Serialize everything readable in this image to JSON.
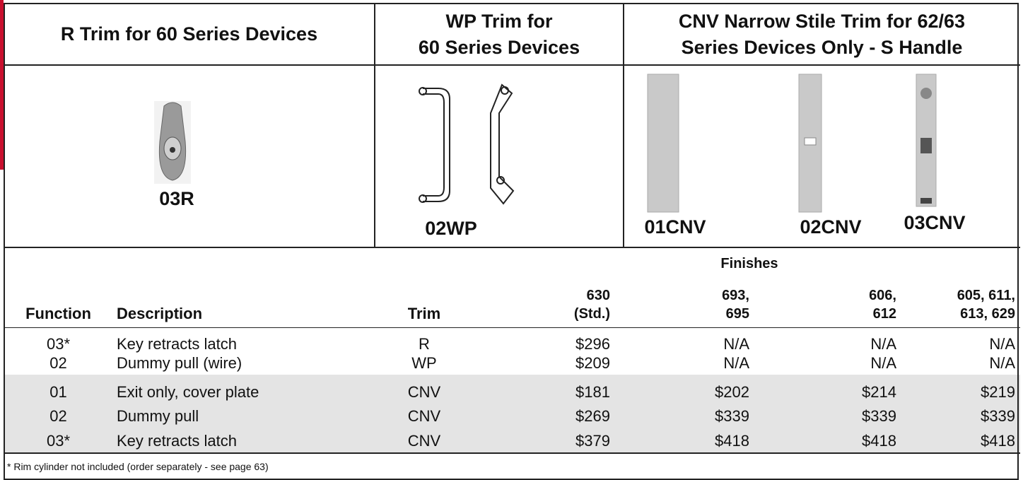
{
  "header": {
    "columns": [
      {
        "lines": [
          "R Trim for 60 Series Devices"
        ]
      },
      {
        "lines": [
          "WP Trim for",
          "60 Series Devices"
        ]
      },
      {
        "lines": [
          "CNV Narrow Stile Trim for 62/63",
          "Series Devices Only - S Handle"
        ]
      }
    ]
  },
  "products": [
    "03R",
    "02WP",
    "01CNV",
    "02CNV",
    "03CNV"
  ],
  "table": {
    "group_label": "Finishes",
    "columns": [
      [
        "Function"
      ],
      [
        "Description"
      ],
      [
        "Trim"
      ],
      [
        "630",
        "(Std.)"
      ],
      [
        "693,",
        "695"
      ],
      [
        "606,",
        "612"
      ],
      [
        "605, 611,",
        "613, 629"
      ]
    ],
    "groups": [
      [
        [
          "03*",
          "Key retracts latch",
          "R",
          "$296",
          "N/A",
          "N/A",
          "N/A"
        ],
        [
          "02",
          "Dummy pull (wire)",
          "WP",
          "$209",
          "N/A",
          "N/A",
          "N/A"
        ]
      ],
      [
        [
          "01",
          "Exit only, cover plate",
          "CNV",
          "$181",
          "$202",
          "$214",
          "$219"
        ],
        [
          "02",
          "Dummy pull",
          "CNV",
          "$269",
          "$339",
          "$339",
          "$339"
        ],
        [
          "03*",
          "Key retracts latch",
          "CNV",
          "$379",
          "$418",
          "$418",
          "$418"
        ]
      ]
    ]
  },
  "footnote": "* Rim cylinder not included (order separately - see page 63)"
}
